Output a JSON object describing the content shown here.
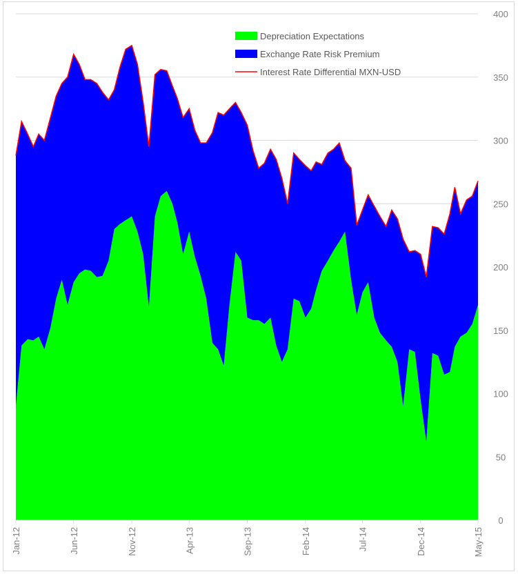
{
  "chart_data": {
    "type": "area",
    "stacked": true,
    "title": "",
    "xlabel": "",
    "ylabel": "",
    "ylim": [
      0,
      400
    ],
    "y_ticks": [
      "0",
      "50",
      "100",
      "150",
      "200",
      "250",
      "300",
      "350",
      "400"
    ],
    "y_axis_side": "right",
    "x_ticks": [
      "Jan-12",
      "Jun-12",
      "Nov-12",
      "Apr-13",
      "Sep-13",
      "Feb-14",
      "Jul-14",
      "Dec-14",
      "May-15"
    ],
    "x_tick_dates": [
      "2012-01-01",
      "2012-06-01",
      "2012-11-01",
      "2013-04-01",
      "2013-09-01",
      "2014-02-01",
      "2014-07-01",
      "2014-12-01",
      "2015-05-01"
    ],
    "xlim": [
      "2012-01-01",
      "2015-05-01"
    ],
    "grid": "horizontal",
    "legend_position": "top-center",
    "x": [
      "2012-01-01",
      "2012-01-16",
      "2012-02-01",
      "2012-02-16",
      "2012-03-01",
      "2012-03-16",
      "2012-04-01",
      "2012-04-16",
      "2012-05-01",
      "2012-05-16",
      "2012-06-01",
      "2012-06-16",
      "2012-07-01",
      "2012-07-16",
      "2012-08-01",
      "2012-08-16",
      "2012-09-01",
      "2012-09-16",
      "2012-10-01",
      "2012-10-16",
      "2012-11-01",
      "2012-11-16",
      "2012-12-01",
      "2012-12-16",
      "2013-01-01",
      "2013-01-16",
      "2013-02-01",
      "2013-02-16",
      "2013-03-01",
      "2013-03-16",
      "2013-04-01",
      "2013-04-16",
      "2013-05-01",
      "2013-05-16",
      "2013-06-01",
      "2013-06-16",
      "2013-07-01",
      "2013-07-16",
      "2013-08-01",
      "2013-08-16",
      "2013-09-01",
      "2013-09-16",
      "2013-10-01",
      "2013-10-16",
      "2013-11-01",
      "2013-11-16",
      "2013-12-01",
      "2013-12-16",
      "2014-01-01",
      "2014-01-16",
      "2014-02-01",
      "2014-02-16",
      "2014-03-01",
      "2014-03-16",
      "2014-04-01",
      "2014-04-16",
      "2014-05-01",
      "2014-05-16",
      "2014-06-01",
      "2014-06-16",
      "2014-07-01",
      "2014-07-16",
      "2014-08-01",
      "2014-08-16",
      "2014-09-01",
      "2014-09-16",
      "2014-10-01",
      "2014-10-16",
      "2014-11-01",
      "2014-11-16",
      "2014-12-01",
      "2014-12-16",
      "2015-01-01",
      "2015-01-16",
      "2015-02-01",
      "2015-02-16",
      "2015-03-01",
      "2015-03-16",
      "2015-04-01",
      "2015-04-16",
      "2015-05-01"
    ],
    "series": [
      {
        "name": "Depreciation Expectations",
        "kind": "area",
        "color": "#00ff00",
        "values": [
          90,
          138,
          143,
          142,
          145,
          135,
          152,
          175,
          190,
          170,
          188,
          195,
          198,
          197,
          192,
          193,
          205,
          230,
          234,
          237,
          240,
          228,
          210,
          168,
          240,
          256,
          260,
          250,
          235,
          210,
          228,
          208,
          193,
          175,
          140,
          135,
          122,
          170,
          212,
          205,
          160,
          158,
          158,
          155,
          160,
          138,
          125,
          135,
          175,
          173,
          160,
          167,
          182,
          197,
          205,
          213,
          220,
          228,
          190,
          162,
          180,
          188,
          160,
          148,
          142,
          137,
          125,
          90,
          135,
          133,
          95,
          62,
          132,
          130,
          115,
          117,
          137,
          145,
          148,
          155,
          170
        ]
      },
      {
        "name": "Exchange Rate Risk Premium",
        "kind": "area",
        "color": "#0000ff",
        "values": [
          198,
          177,
          162,
          153,
          160,
          165,
          166,
          160,
          155,
          180,
          180,
          165,
          150,
          151,
          153,
          145,
          127,
          110,
          124,
          135,
          135,
          132,
          120,
          127,
          112,
          100,
          95,
          93,
          98,
          108,
          97,
          100,
          105,
          123,
          166,
          187,
          198,
          155,
          118,
          117,
          152,
          134,
          120,
          127,
          133,
          147,
          145,
          115,
          115,
          112,
          120,
          109,
          101,
          84,
          85,
          80,
          78,
          56,
          88,
          71,
          65,
          69,
          88,
          92,
          90,
          108,
          113,
          132,
          77,
          80,
          115,
          130,
          100,
          101,
          111,
          125,
          126,
          97,
          105,
          101,
          98
        ]
      },
      {
        "name": "Interest Rate Differential MXN-USD",
        "kind": "line",
        "color": "#ff0000",
        "values": [
          288,
          315,
          305,
          295,
          305,
          300,
          318,
          335,
          345,
          350,
          368,
          360,
          348,
          348,
          345,
          338,
          332,
          340,
          358,
          372,
          375,
          360,
          330,
          295,
          352,
          356,
          355,
          343,
          333,
          318,
          325,
          308,
          298,
          298,
          306,
          322,
          320,
          325,
          330,
          322,
          312,
          292,
          278,
          282,
          293,
          285,
          270,
          250,
          290,
          285,
          280,
          276,
          283,
          281,
          290,
          293,
          298,
          284,
          278,
          233,
          245,
          257,
          248,
          240,
          232,
          245,
          238,
          222,
          212,
          213,
          210,
          192,
          232,
          231,
          226,
          242,
          263,
          242,
          253,
          256,
          268
        ]
      }
    ]
  }
}
